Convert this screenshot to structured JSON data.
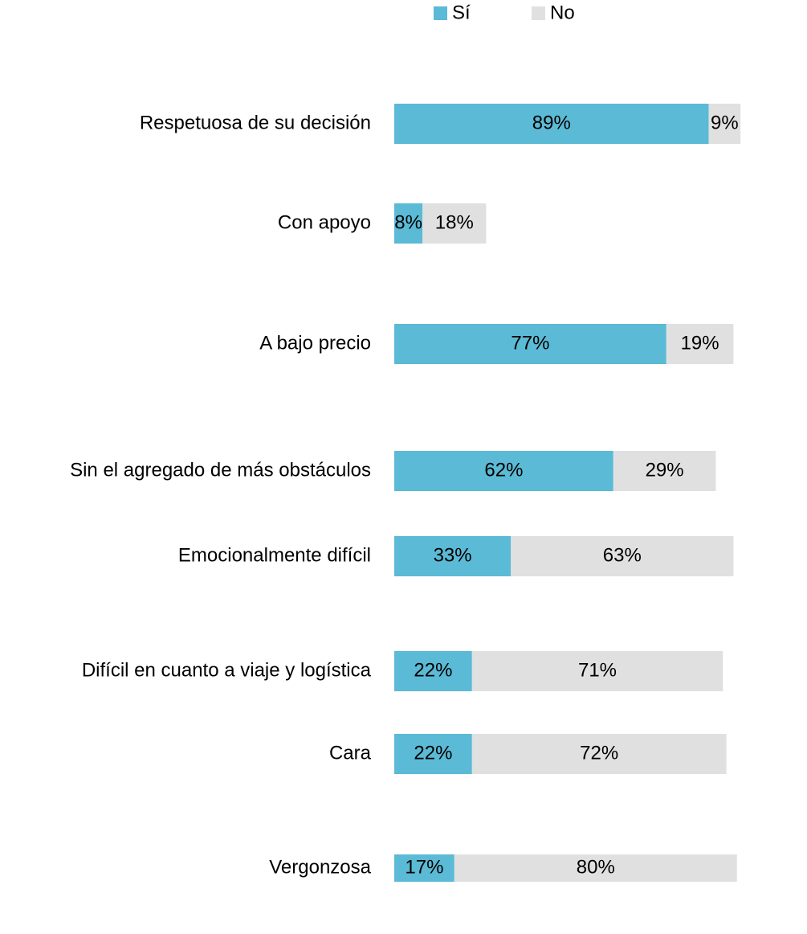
{
  "chart_data": {
    "type": "stacked_bar_horizontal",
    "categories": [
      "Respetuosa de su decisión",
      "Con apoyo",
      "A bajo precio",
      "Sin el agregado de más obstáculos",
      "Emocionalmente difícil",
      "Difícil en cuanto a viaje y logística",
      "Cara",
      "Vergonzosa"
    ],
    "series": [
      {
        "name": "Sí",
        "color": "#5bbad5",
        "values": [
          89,
          8,
          77,
          62,
          33,
          22,
          22,
          17
        ],
        "value_labels": [
          "89%",
          "8%",
          "77%",
          "62%",
          "33%",
          "22%",
          "22%",
          "17%"
        ]
      },
      {
        "name": "No",
        "color": "#e0e0e0",
        "values": [
          9,
          18,
          19,
          29,
          63,
          71,
          72,
          80
        ],
        "value_labels": [
          "9%",
          "18%",
          "19%",
          "29%",
          "63%",
          "71%",
          "72%",
          "80%"
        ]
      }
    ],
    "legend": "top"
  }
}
